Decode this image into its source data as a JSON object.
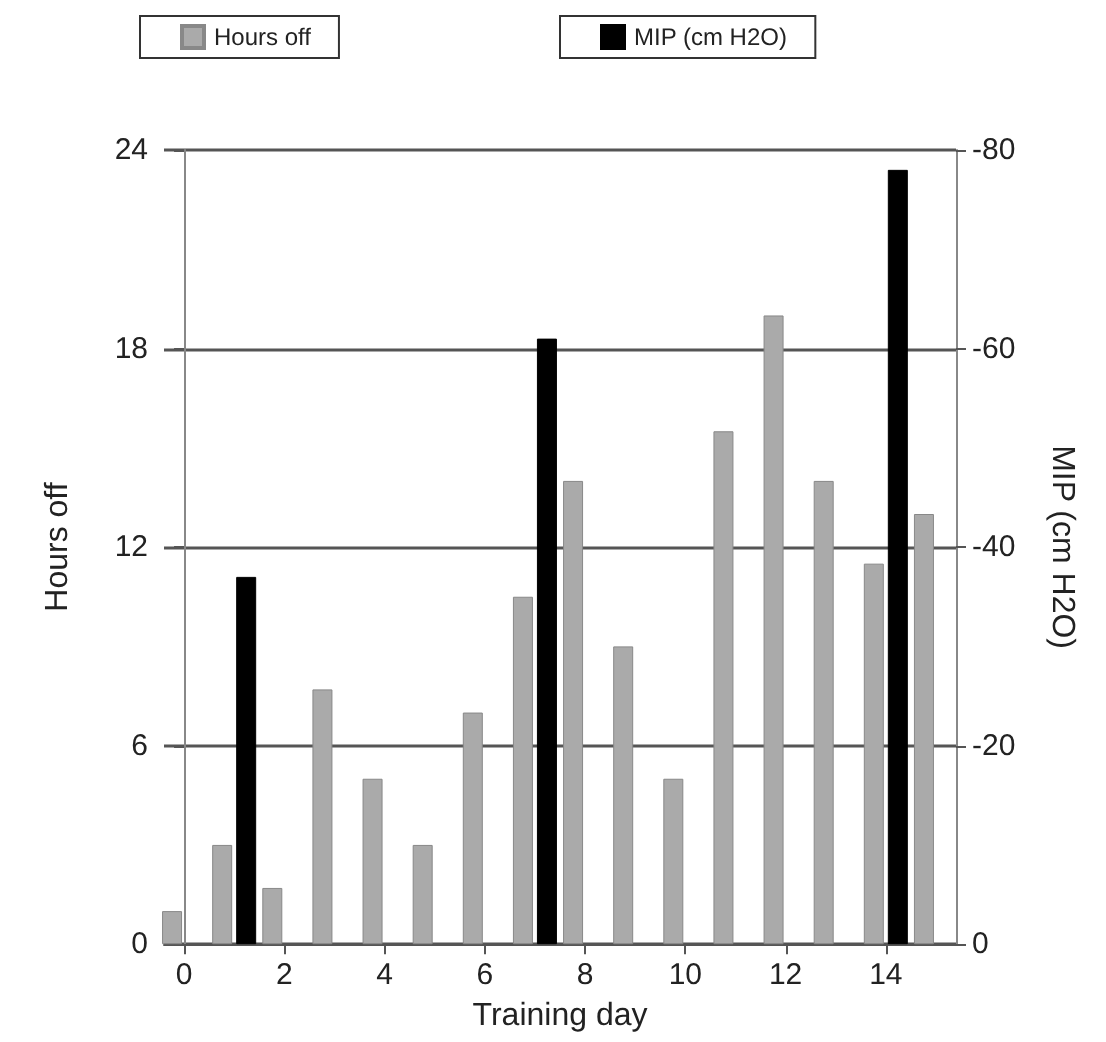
{
  "chart_data": {
    "type": "bar",
    "xlabel": "Training day",
    "ylabel": "Hours off",
    "y2label": "MIP (cm H2O)",
    "xlim": [
      -0.4,
      15.4
    ],
    "xticks": [
      0,
      2,
      4,
      6,
      8,
      10,
      12,
      14
    ],
    "ylim": [
      0,
      24
    ],
    "yticks": [
      0,
      6,
      12,
      18,
      24
    ],
    "y2lim": [
      0,
      -80
    ],
    "y2ticks": [
      0,
      -20,
      -40,
      -60,
      -80
    ],
    "series": [
      {
        "name": "Hours off",
        "color": "#aaaaaa",
        "x": [
          0,
          1,
          2,
          3,
          4,
          5,
          6,
          7,
          8,
          9,
          10,
          11,
          12,
          13,
          14,
          15
        ],
        "values": [
          1,
          3,
          1.7,
          7.7,
          5,
          3,
          7,
          10.5,
          14,
          9,
          5,
          15.5,
          19,
          14,
          11.5,
          13
        ]
      },
      {
        "name": "MIP (cm H2O)",
        "color": "#000000",
        "axis": "y2",
        "x": [
          1,
          7,
          14
        ],
        "values": [
          -37,
          -61,
          -78
        ]
      }
    ],
    "grid": "y",
    "legend": "top"
  }
}
